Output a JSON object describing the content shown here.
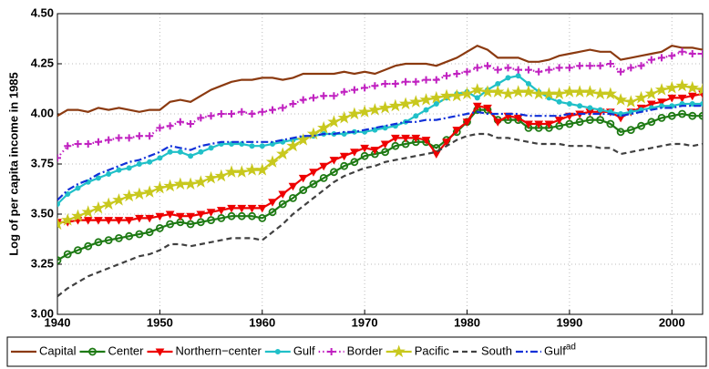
{
  "chart_data": {
    "type": "line",
    "ylabel": "Log of per capita income in 1985",
    "x": [
      1940,
      1941,
      1942,
      1943,
      1944,
      1945,
      1946,
      1947,
      1948,
      1949,
      1950,
      1951,
      1952,
      1953,
      1954,
      1955,
      1956,
      1957,
      1958,
      1959,
      1960,
      1961,
      1962,
      1963,
      1964,
      1965,
      1966,
      1967,
      1968,
      1969,
      1970,
      1971,
      1972,
      1973,
      1974,
      1975,
      1976,
      1977,
      1978,
      1979,
      1980,
      1981,
      1982,
      1983,
      1984,
      1985,
      1986,
      1987,
      1988,
      1989,
      1990,
      1991,
      1992,
      1993,
      1994,
      1995,
      1996,
      1997,
      1998,
      1999,
      2000,
      2001,
      2002,
      2003
    ],
    "xlim": [
      1940,
      2003
    ],
    "xticks": [
      1940,
      1950,
      1960,
      1970,
      1980,
      1990,
      2000
    ],
    "ylim": [
      3,
      4.5
    ],
    "yticks": [
      {
        "value": 3,
        "label": "3.00"
      },
      {
        "value": 3.25,
        "label": "3.25"
      },
      {
        "value": 3.5,
        "label": "3.50"
      },
      {
        "value": 3.75,
        "label": "3.75"
      },
      {
        "value": 4,
        "label": "4.00"
      },
      {
        "value": 4.25,
        "label": "4.25"
      },
      {
        "value": 4.5,
        "label": "4.50"
      }
    ],
    "grid": true,
    "legend": "bottom",
    "series": [
      {
        "name": "Capital",
        "color": "#8b3a10",
        "line_style": "solid",
        "marker": null,
        "values": [
          3.99,
          4.02,
          4.02,
          4.01,
          4.03,
          4.02,
          4.03,
          4.02,
          4.01,
          4.02,
          4.02,
          4.06,
          4.07,
          4.06,
          4.09,
          4.12,
          4.14,
          4.16,
          4.17,
          4.17,
          4.18,
          4.18,
          4.17,
          4.18,
          4.2,
          4.2,
          4.2,
          4.2,
          4.21,
          4.2,
          4.21,
          4.2,
          4.22,
          4.24,
          4.25,
          4.25,
          4.25,
          4.24,
          4.26,
          4.28,
          4.31,
          4.34,
          4.32,
          4.28,
          4.28,
          4.28,
          4.26,
          4.26,
          4.27,
          4.29,
          4.3,
          4.31,
          4.32,
          4.31,
          4.31,
          4.27,
          4.28,
          4.29,
          4.3,
          4.31,
          4.34,
          4.33,
          4.33,
          4.32
        ]
      },
      {
        "name": "Center",
        "color": "#1e7a14",
        "line_style": "solid",
        "marker": "circle",
        "values": [
          3.27,
          3.3,
          3.32,
          3.34,
          3.36,
          3.37,
          3.38,
          3.39,
          3.4,
          3.41,
          3.43,
          3.45,
          3.46,
          3.45,
          3.46,
          3.47,
          3.48,
          3.49,
          3.49,
          3.49,
          3.48,
          3.51,
          3.55,
          3.58,
          3.62,
          3.65,
          3.68,
          3.71,
          3.74,
          3.76,
          3.79,
          3.8,
          3.81,
          3.84,
          3.85,
          3.86,
          3.86,
          3.83,
          3.87,
          3.91,
          3.96,
          4.02,
          4.02,
          3.97,
          3.97,
          3.97,
          3.93,
          3.93,
          3.93,
          3.94,
          3.95,
          3.96,
          3.97,
          3.97,
          3.95,
          3.91,
          3.92,
          3.94,
          3.96,
          3.98,
          3.99,
          4.0,
          3.99,
          3.99
        ]
      },
      {
        "name": "Northern−center",
        "color": "#ee0000",
        "line_style": "solid",
        "marker": "triangle-down",
        "values": [
          3.46,
          3.46,
          3.47,
          3.47,
          3.47,
          3.47,
          3.47,
          3.47,
          3.48,
          3.48,
          3.49,
          3.5,
          3.49,
          3.49,
          3.5,
          3.51,
          3.52,
          3.53,
          3.53,
          3.53,
          3.53,
          3.56,
          3.6,
          3.64,
          3.68,
          3.71,
          3.74,
          3.77,
          3.79,
          3.81,
          3.83,
          3.82,
          3.85,
          3.88,
          3.88,
          3.88,
          3.87,
          3.8,
          3.86,
          3.92,
          3.96,
          4.04,
          4.03,
          3.96,
          3.99,
          3.98,
          3.95,
          3.95,
          3.95,
          3.97,
          3.99,
          4.0,
          4.01,
          4.01,
          4.01,
          3.98,
          4.01,
          4.03,
          4.05,
          4.06,
          4.08,
          4.08,
          4.09,
          4.1
        ]
      },
      {
        "name": "Gulf",
        "color": "#20c0c8",
        "line_style": "solid",
        "marker": "dot",
        "values": [
          3.55,
          3.6,
          3.63,
          3.66,
          3.68,
          3.7,
          3.72,
          3.73,
          3.75,
          3.76,
          3.78,
          3.81,
          3.81,
          3.79,
          3.81,
          3.83,
          3.85,
          3.85,
          3.85,
          3.84,
          3.84,
          3.85,
          3.86,
          3.87,
          3.88,
          3.89,
          3.9,
          3.9,
          3.9,
          3.91,
          3.91,
          3.92,
          3.93,
          3.94,
          3.96,
          3.99,
          4.02,
          4.05,
          4.08,
          4.1,
          4.11,
          4.08,
          4.12,
          4.15,
          4.18,
          4.19,
          4.15,
          4.11,
          4.08,
          4.06,
          4.05,
          4.04,
          4.03,
          4.02,
          4.01,
          4.0,
          4.01,
          4.02,
          4.03,
          4.04,
          4.04,
          4.05,
          4.05,
          4.05
        ]
      },
      {
        "name": "Border",
        "color": "#c020c0",
        "line_style": "dotted",
        "marker": "plus",
        "values": [
          3.78,
          3.84,
          3.85,
          3.85,
          3.86,
          3.87,
          3.88,
          3.88,
          3.89,
          3.89,
          3.93,
          3.94,
          3.96,
          3.95,
          3.98,
          3.99,
          4.0,
          4.0,
          4.01,
          4.0,
          4.01,
          4.02,
          4.03,
          4.05,
          4.07,
          4.08,
          4.09,
          4.09,
          4.11,
          4.12,
          4.13,
          4.14,
          4.15,
          4.15,
          4.16,
          4.16,
          4.17,
          4.17,
          4.19,
          4.2,
          4.21,
          4.23,
          4.24,
          4.22,
          4.23,
          4.22,
          4.22,
          4.21,
          4.22,
          4.23,
          4.23,
          4.24,
          4.24,
          4.24,
          4.25,
          4.21,
          4.23,
          4.24,
          4.27,
          4.28,
          4.29,
          4.31,
          4.3,
          4.3
        ]
      },
      {
        "name": "Pacific",
        "color": "#c8c81e",
        "line_style": "solid",
        "marker": "star",
        "values": [
          3.45,
          3.47,
          3.49,
          3.51,
          3.53,
          3.55,
          3.57,
          3.59,
          3.6,
          3.61,
          3.63,
          3.64,
          3.65,
          3.65,
          3.66,
          3.68,
          3.69,
          3.71,
          3.71,
          3.72,
          3.72,
          3.76,
          3.8,
          3.84,
          3.87,
          3.9,
          3.93,
          3.96,
          3.98,
          4.0,
          4.01,
          4.02,
          4.03,
          4.04,
          4.05,
          4.06,
          4.07,
          4.08,
          4.09,
          4.09,
          4.1,
          4.12,
          4.11,
          4.11,
          4.1,
          4.11,
          4.11,
          4.1,
          4.1,
          4.1,
          4.11,
          4.11,
          4.11,
          4.1,
          4.1,
          4.07,
          4.06,
          4.08,
          4.1,
          4.12,
          4.13,
          4.14,
          4.13,
          4.12
        ]
      },
      {
        "name": "South",
        "color": "#404040",
        "line_style": "dashed",
        "marker": null,
        "values": [
          3.09,
          3.13,
          3.16,
          3.19,
          3.21,
          3.23,
          3.25,
          3.27,
          3.29,
          3.3,
          3.32,
          3.35,
          3.35,
          3.34,
          3.35,
          3.36,
          3.37,
          3.38,
          3.38,
          3.38,
          3.37,
          3.41,
          3.45,
          3.5,
          3.54,
          3.58,
          3.62,
          3.66,
          3.69,
          3.71,
          3.73,
          3.74,
          3.76,
          3.77,
          3.78,
          3.79,
          3.8,
          3.81,
          3.84,
          3.87,
          3.89,
          3.9,
          3.9,
          3.88,
          3.88,
          3.87,
          3.86,
          3.85,
          3.85,
          3.85,
          3.84,
          3.84,
          3.84,
          3.83,
          3.83,
          3.8,
          3.81,
          3.82,
          3.83,
          3.84,
          3.85,
          3.85,
          3.84,
          3.85
        ]
      },
      {
        "name": "Gulf",
        "name_superscript": "ad",
        "color": "#1030d8",
        "line_style": "dashdot",
        "marker": null,
        "values": [
          3.57,
          3.62,
          3.65,
          3.67,
          3.7,
          3.72,
          3.74,
          3.76,
          3.77,
          3.79,
          3.81,
          3.84,
          3.83,
          3.82,
          3.84,
          3.85,
          3.86,
          3.86,
          3.86,
          3.86,
          3.86,
          3.86,
          3.87,
          3.88,
          3.89,
          3.89,
          3.9,
          3.9,
          3.91,
          3.91,
          3.92,
          3.93,
          3.94,
          3.95,
          3.96,
          3.96,
          3.97,
          3.97,
          3.98,
          3.99,
          4.0,
          4.01,
          4.0,
          4.0,
          4.0,
          4.0,
          3.99,
          3.99,
          3.99,
          3.99,
          4.0,
          4.0,
          4.0,
          4.0,
          4.0,
          3.99,
          4.0,
          4.01,
          4.02,
          4.03,
          4.03,
          4.04,
          4.04,
          4.04
        ]
      }
    ]
  }
}
